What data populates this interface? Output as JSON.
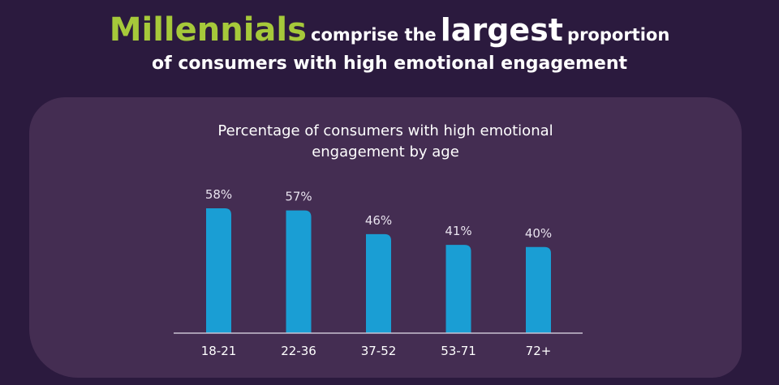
{
  "headline": {
    "highlight": "Millennials",
    "part1": "comprise the",
    "emphasis": "largest",
    "part2": "proportion",
    "line2": "of consumers with high emotional engagement"
  },
  "chart_data": {
    "type": "bar",
    "title_line1": "Percentage of consumers with high emotional",
    "title_line2": "engagement by age",
    "categories": [
      "18-21",
      "22-36",
      "37-52",
      "53-71",
      "72+"
    ],
    "values": [
      58,
      57,
      46,
      41,
      40
    ],
    "value_labels": [
      "58%",
      "57%",
      "46%",
      "41%",
      "40%"
    ],
    "ylim": [
      0,
      100
    ],
    "bar_color": "#1a9ed4",
    "grid": false,
    "legend": "none"
  },
  "colors": {
    "background": "#2b1a3e",
    "panel": "#442d52",
    "highlight": "#a6c93a",
    "bar": "#1a9ed4"
  }
}
